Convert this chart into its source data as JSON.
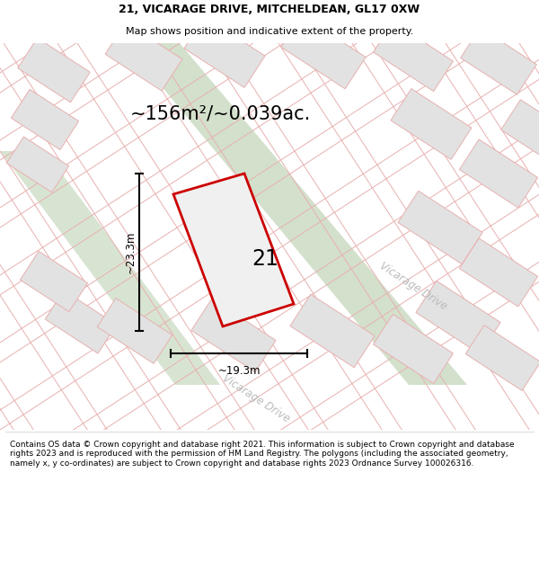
{
  "title": "21, VICARAGE DRIVE, MITCHELDEAN, GL17 0XW",
  "subtitle": "Map shows position and indicative extent of the property.",
  "area_label": "~156m²/~0.039ac.",
  "width_label": "~19.3m",
  "height_label": "~23.3m",
  "number_label": "21",
  "vicarage_drive_label": "Vicarage Drive",
  "footer": "Contains OS data © Crown copyright and database right 2021. This information is subject to Crown copyright and database rights 2023 and is reproduced with the permission of HM Land Registry. The polygons (including the associated geometry, namely x, y co-ordinates) are subject to Crown copyright and database rights 2023 Ordnance Survey 100026316.",
  "bg_color": "#ffffff",
  "map_bg": "#f5f5f5",
  "road_line_color": "#e8b0b0",
  "block_fill": "#e2e2e2",
  "block_edge": "#e8b0b0",
  "green_color": "#c8d9c0",
  "plot_fill": "#f0f0f0",
  "plot_edge": "#cc0000",
  "title_fontsize": 9.0,
  "subtitle_fontsize": 8.0,
  "area_fontsize": 15,
  "label_fontsize": 8.5,
  "footer_fontsize": 6.5,
  "road_label_color": "#bbbbbb",
  "road_label_fontsize": 8.5
}
